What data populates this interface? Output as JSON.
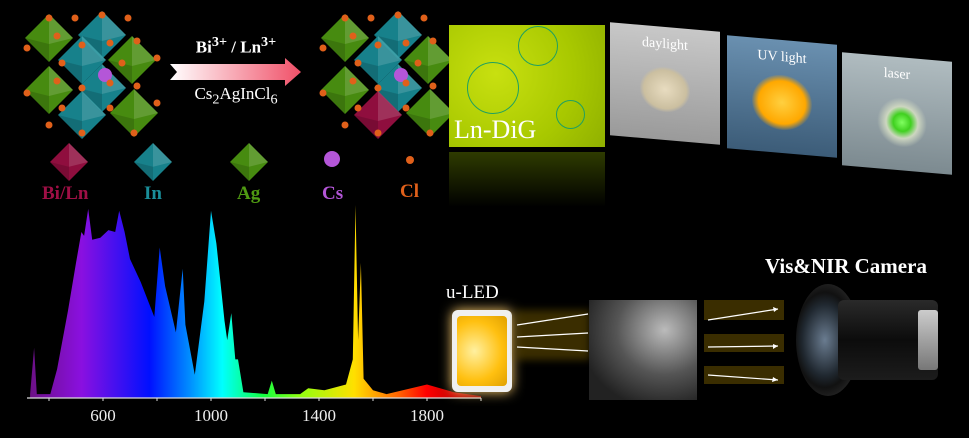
{
  "reaction": {
    "dopant_label_html": "Bi<sup>3+</sup> / Ln<sup>3+</sup>",
    "dopant_label": "Bi3+ / Ln3+",
    "host_label": "Cs2AgInCl6"
  },
  "legend": [
    {
      "label": "Bi/Ln",
      "color": "#9e0f45",
      "shape": "octahedron"
    },
    {
      "label": "In",
      "color": "#1a8f9a",
      "shape": "octahedron"
    },
    {
      "label": "Ag",
      "color": "#4f9a12",
      "shape": "octahedron"
    },
    {
      "label": "Cs",
      "color": "#b456d8",
      "shape": "sphere"
    },
    {
      "label": "Cl",
      "color": "#e0601a",
      "shape": "sphere"
    }
  ],
  "photos": {
    "micro_label": "Ln-DiG",
    "panels": [
      {
        "label": "daylight"
      },
      {
        "label": "UV light"
      },
      {
        "label": "laser"
      }
    ]
  },
  "imaging": {
    "source_label": "u-LED",
    "camera_label": "Vis&NIR Camera"
  },
  "chart_data": {
    "type": "area",
    "xlabel": "",
    "ylabel": "",
    "x_ticks": [
      600,
      1000,
      1400,
      1800
    ],
    "xlim": [
      320,
      2000
    ],
    "ylim": [
      0,
      1
    ],
    "grid": false,
    "fill": "spectral gradient",
    "points": [
      [
        330,
        0.02
      ],
      [
        345,
        0.26
      ],
      [
        355,
        0.02
      ],
      [
        405,
        0.02
      ],
      [
        430,
        0.15
      ],
      [
        470,
        0.45
      ],
      [
        500,
        0.7
      ],
      [
        520,
        0.86
      ],
      [
        530,
        0.84
      ],
      [
        545,
        0.98
      ],
      [
        560,
        0.82
      ],
      [
        590,
        0.83
      ],
      [
        620,
        0.87
      ],
      [
        645,
        0.86
      ],
      [
        660,
        0.97
      ],
      [
        680,
        0.86
      ],
      [
        700,
        0.72
      ],
      [
        740,
        0.6
      ],
      [
        790,
        0.42
      ],
      [
        810,
        0.78
      ],
      [
        830,
        0.58
      ],
      [
        870,
        0.34
      ],
      [
        895,
        0.67
      ],
      [
        905,
        0.38
      ],
      [
        940,
        0.12
      ],
      [
        975,
        0.5
      ],
      [
        1000,
        0.97
      ],
      [
        1020,
        0.8
      ],
      [
        1050,
        0.4
      ],
      [
        1060,
        0.3
      ],
      [
        1075,
        0.44
      ],
      [
        1090,
        0.2
      ],
      [
        1100,
        0.2
      ],
      [
        1120,
        0.03
      ],
      [
        1210,
        0.02
      ],
      [
        1225,
        0.09
      ],
      [
        1240,
        0.02
      ],
      [
        1330,
        0.02
      ],
      [
        1360,
        0.05
      ],
      [
        1420,
        0.04
      ],
      [
        1500,
        0.07
      ],
      [
        1525,
        0.2
      ],
      [
        1535,
        1.0
      ],
      [
        1545,
        0.3
      ],
      [
        1555,
        0.7
      ],
      [
        1565,
        0.1
      ],
      [
        1600,
        0.04
      ],
      [
        1650,
        0.02
      ],
      [
        1800,
        0.07
      ],
      [
        1900,
        0.03
      ],
      [
        2000,
        0.01
      ]
    ]
  }
}
